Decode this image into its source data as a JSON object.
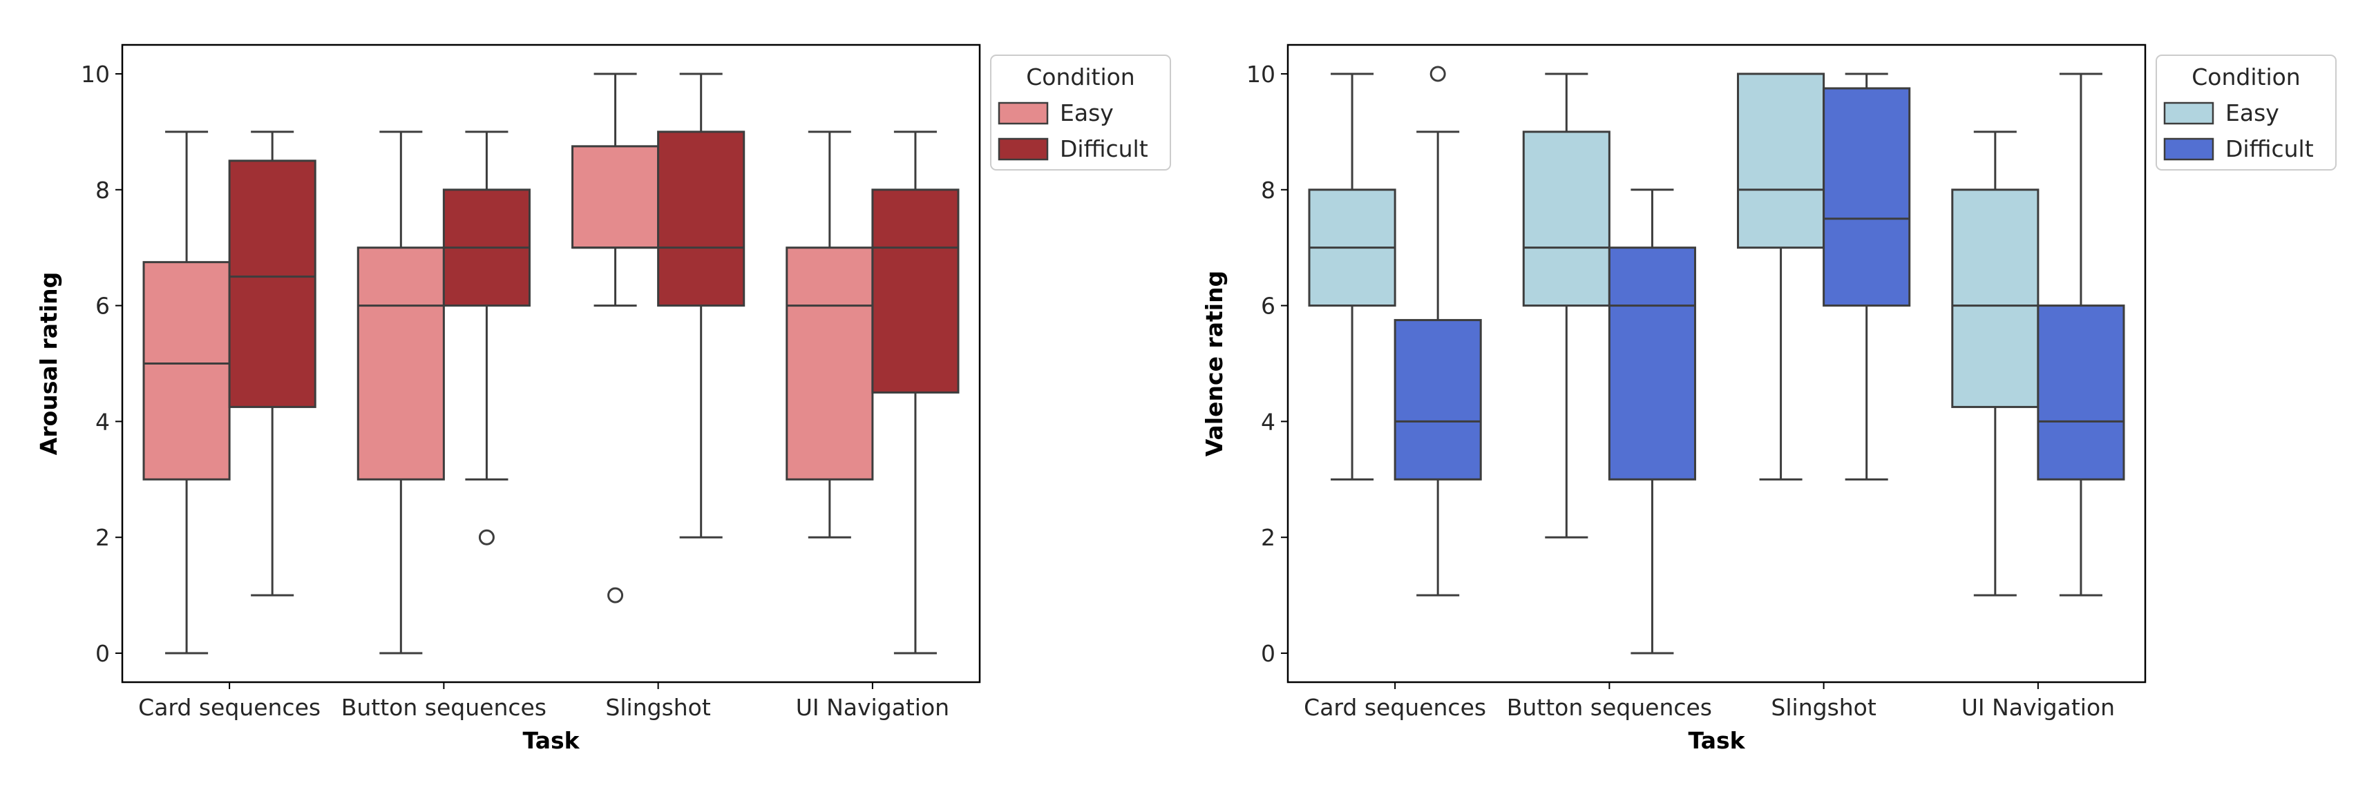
{
  "chart_data": [
    {
      "type": "box",
      "ylabel": "Arousal rating",
      "xlabel": "Task",
      "categories": [
        "Card sequences",
        "Button sequences",
        "Slingshot",
        "UI Navigation"
      ],
      "ylim": [
        -0.5,
        10.5
      ],
      "yticks": [
        0,
        2,
        4,
        6,
        8,
        10
      ],
      "legend": {
        "title": "Condition",
        "position": "upper-right-outside"
      },
      "series": [
        {
          "name": "Easy",
          "color": "#e48b8d",
          "boxes": [
            {
              "min": 0,
              "q1": 3,
              "median": 5,
              "q3": 6.75,
              "max": 9,
              "outliers": []
            },
            {
              "min": 0,
              "q1": 3,
              "median": 6,
              "q3": 7,
              "max": 9,
              "outliers": []
            },
            {
              "min": 6,
              "q1": 7,
              "median": 7,
              "q3": 8.75,
              "max": 10,
              "outliers": [
                1
              ]
            },
            {
              "min": 2,
              "q1": 3,
              "median": 6,
              "q3": 7,
              "max": 9,
              "outliers": []
            }
          ]
        },
        {
          "name": "Difficult",
          "color": "#a03034",
          "boxes": [
            {
              "min": 1,
              "q1": 4.25,
              "median": 6.5,
              "q3": 8.5,
              "max": 9,
              "outliers": []
            },
            {
              "min": 3,
              "q1": 6,
              "median": 7,
              "q3": 8,
              "max": 9,
              "outliers": [
                2
              ]
            },
            {
              "min": 2,
              "q1": 6,
              "median": 7,
              "q3": 9,
              "max": 10,
              "outliers": []
            },
            {
              "min": 0,
              "q1": 4.5,
              "median": 7,
              "q3": 8,
              "max": 9,
              "outliers": []
            }
          ]
        }
      ]
    },
    {
      "type": "box",
      "ylabel": "Valence rating",
      "xlabel": "Task",
      "categories": [
        "Card sequences",
        "Button sequences",
        "Slingshot",
        "UI Navigation"
      ],
      "ylim": [
        -0.5,
        10.5
      ],
      "yticks": [
        0,
        2,
        4,
        6,
        8,
        10
      ],
      "legend": {
        "title": "Condition",
        "position": "upper-right-outside"
      },
      "series": [
        {
          "name": "Easy",
          "color": "#b1d4df",
          "boxes": [
            {
              "min": 3,
              "q1": 6,
              "median": 7,
              "q3": 8,
              "max": 10,
              "outliers": []
            },
            {
              "min": 2,
              "q1": 6,
              "median": 7,
              "q3": 9,
              "max": 10,
              "outliers": []
            },
            {
              "min": 3,
              "q1": 7,
              "median": 8,
              "q3": 10,
              "max": 10,
              "outliers": []
            },
            {
              "min": 1,
              "q1": 4.25,
              "median": 6,
              "q3": 8,
              "max": 9,
              "outliers": []
            }
          ]
        },
        {
          "name": "Difficult",
          "color": "#5370d2",
          "boxes": [
            {
              "min": 1,
              "q1": 3,
              "median": 4,
              "q3": 5.75,
              "max": 9,
              "outliers": [
                10
              ]
            },
            {
              "min": 0,
              "q1": 3,
              "median": 6,
              "q3": 7,
              "max": 8,
              "outliers": []
            },
            {
              "min": 3,
              "q1": 6,
              "median": 7.5,
              "q3": 9.75,
              "max": 10,
              "outliers": []
            },
            {
              "min": 1,
              "q1": 3,
              "median": 4,
              "q3": 6,
              "max": 10,
              "outliers": []
            }
          ]
        }
      ]
    }
  ]
}
